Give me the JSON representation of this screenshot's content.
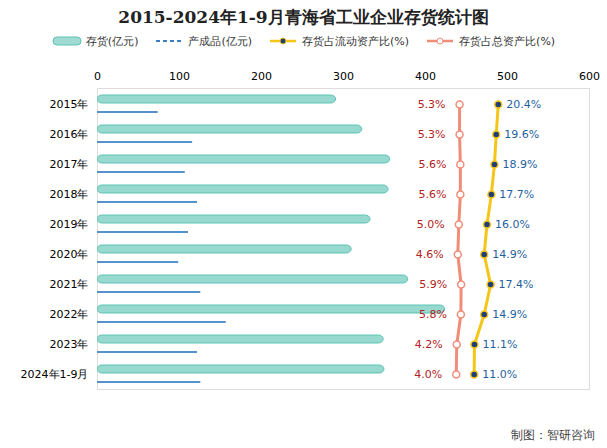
{
  "chart_data": {
    "type": "bar",
    "orientation": "horizontal",
    "title": "2015-2024年1-9月青海省工业企业存货统计图",
    "caption": "制图：智研咨询",
    "legend": "top",
    "grid": false,
    "categories": [
      "2015年",
      "2016年",
      "2017年",
      "2018年",
      "2019年",
      "2020年",
      "2021年",
      "2022年",
      "2023年",
      "2024年1-9月"
    ],
    "xlim": [
      0,
      600
    ],
    "xticks": [
      0,
      100,
      200,
      300,
      400,
      500,
      600
    ],
    "x2lim": [
      -136,
      56
    ],
    "x2ticks": [],
    "series": [
      {
        "name": "存货(亿元)",
        "type": "bar",
        "color": "#5fc3b6",
        "values": [
          291,
          323,
          357,
          355,
          333,
          310,
          379,
          424,
          349,
          350
        ]
      },
      {
        "name": "产成品(亿元)",
        "type": "bar",
        "color": "#3a7fc4",
        "values": [
          74,
          116,
          107,
          122,
          111,
          99,
          126,
          157,
          122,
          126
        ]
      },
      {
        "name": "存货占流动资产比(%)",
        "type": "line",
        "axis": "x2",
        "color": "#f5c518",
        "marker": "circle",
        "data_labels": true,
        "values": [
          20.4,
          19.6,
          18.9,
          17.7,
          16.0,
          14.9,
          17.4,
          14.9,
          11.1,
          11.0
        ],
        "value_labels": [
          "20.4%",
          "19.6%",
          "18.9%",
          "17.7%",
          "16.0%",
          "14.9%",
          "17.4%",
          "14.9%",
          "11.1%",
          "11.0%"
        ]
      },
      {
        "name": "存货占总资产比(%)",
        "type": "line",
        "axis": "x2",
        "color": "#f08c78",
        "marker": "circle",
        "data_labels": true,
        "values": [
          5.3,
          5.3,
          5.6,
          5.6,
          5.0,
          4.6,
          5.9,
          5.8,
          4.2,
          4.0
        ],
        "value_labels": [
          "5.3%",
          "5.3%",
          "5.6%",
          "5.6%",
          "5.0%",
          "4.6%",
          "5.9%",
          "5.8%",
          "4.2%",
          "4.0%"
        ]
      }
    ]
  }
}
